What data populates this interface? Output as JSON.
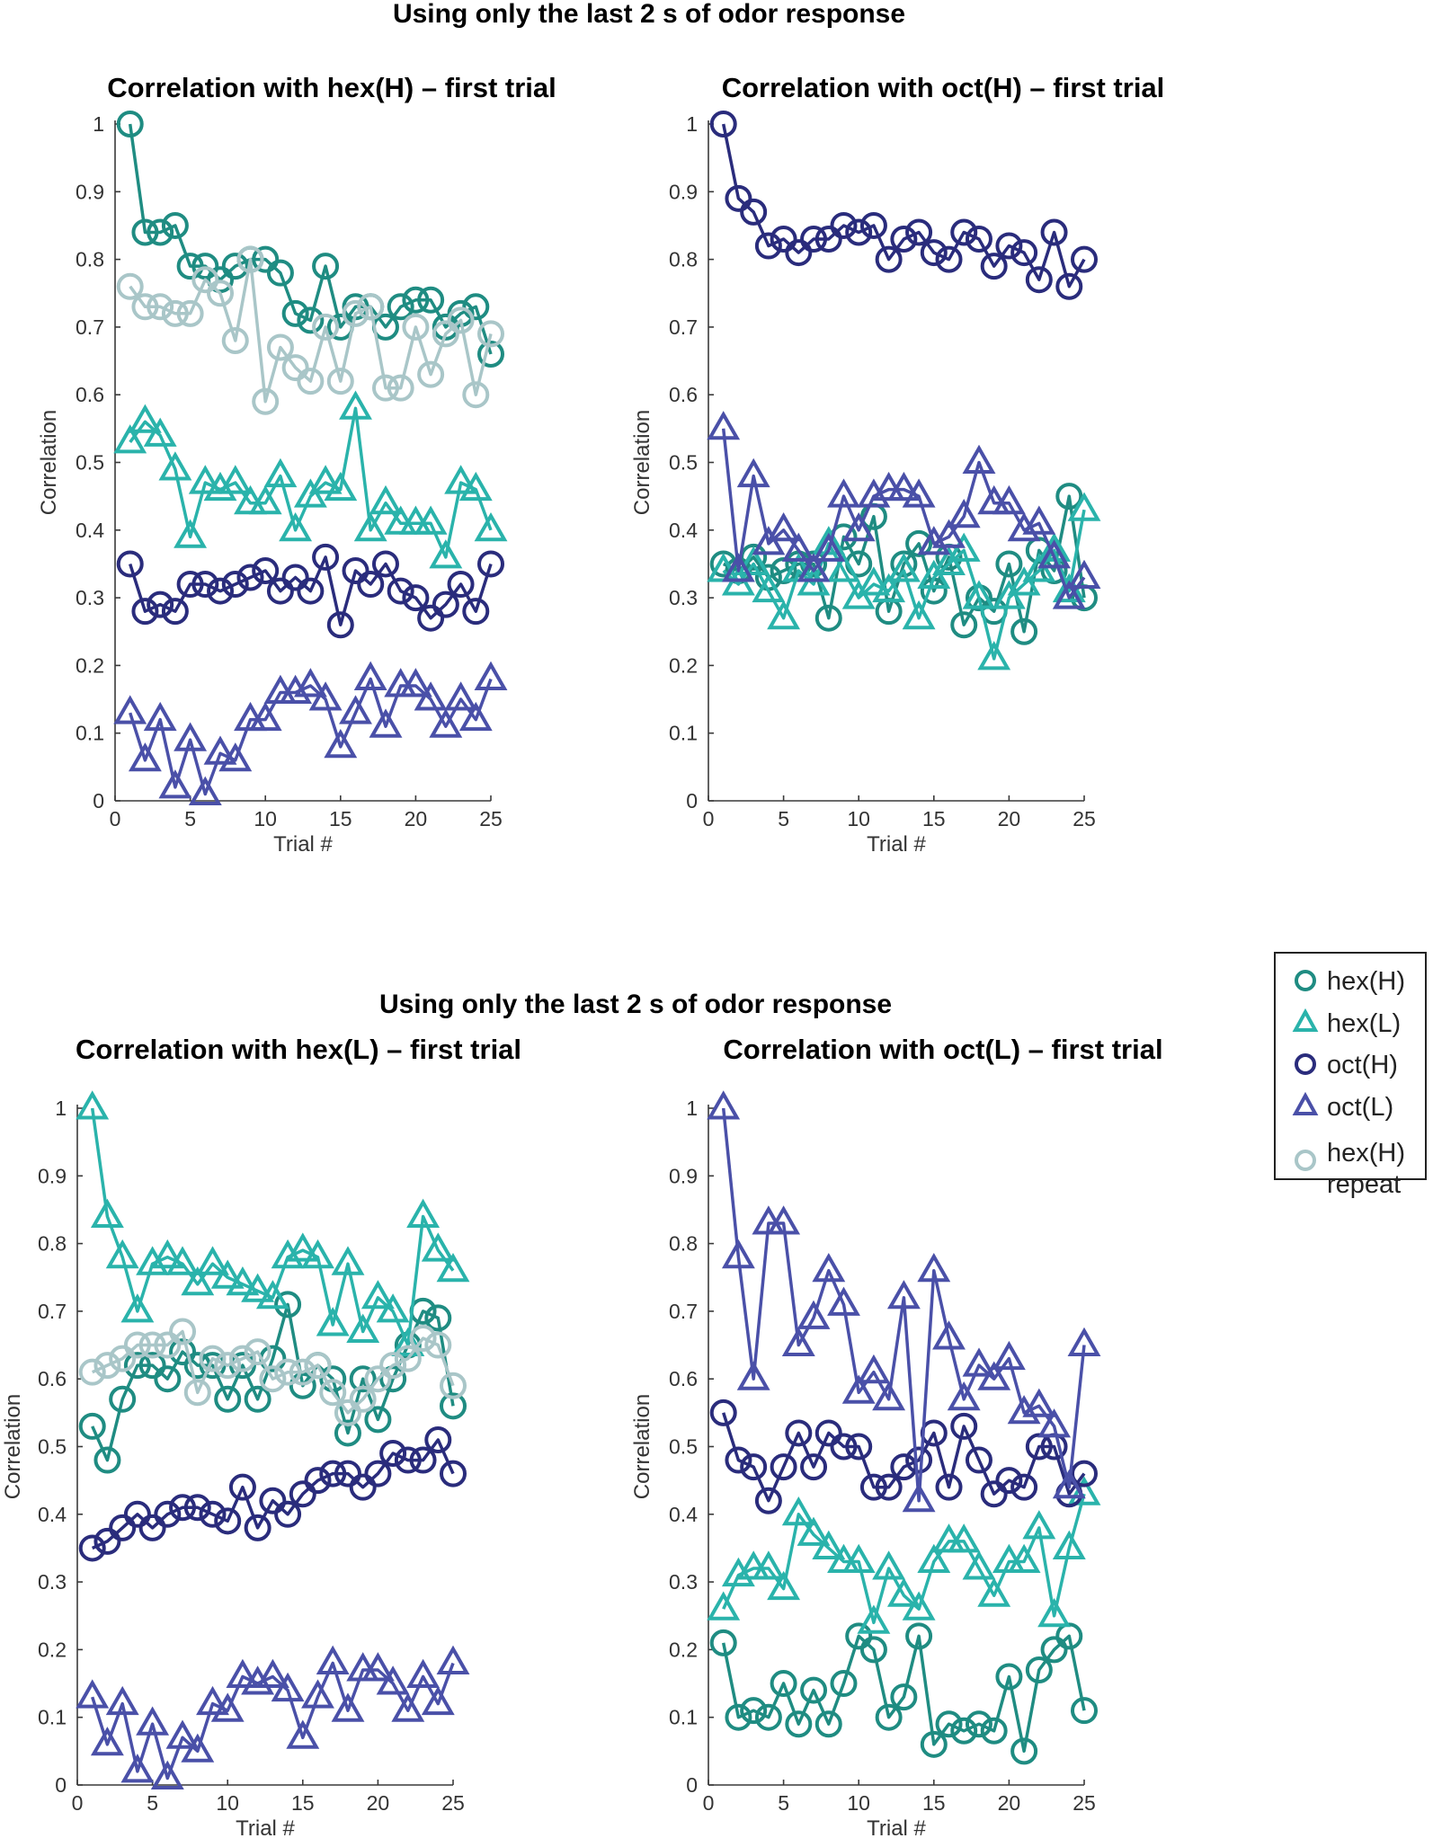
{
  "figure": {
    "group_titles": [
      "Using only the  last 2 s of odor response",
      "Using only the  last 2 s of odor response"
    ]
  },
  "colors": {
    "hexH": "#1f8c82",
    "hexL": "#2ab3ab",
    "octH": "#2a2c7c",
    "octL": "#4a50a8",
    "hexHrep": "#a9c6c8"
  },
  "legend": {
    "items": [
      {
        "label": "hex(H)",
        "marker": "circle",
        "color": "#1f8c82"
      },
      {
        "label": "hex(L)",
        "marker": "triangle",
        "color": "#2ab3ab"
      },
      {
        "label": "oct(H)",
        "marker": "circle",
        "color": "#2a2c7c"
      },
      {
        "label": "oct(L)",
        "marker": "triangle",
        "color": "#4a50a8"
      },
      {
        "label": "hex(H)",
        "label2": "repeat",
        "marker": "circle",
        "color": "#a9c6c8"
      }
    ]
  },
  "chart_data": [
    {
      "type": "line",
      "title": "Correlation with hex(H) – first trial",
      "xlabel": "Trial #",
      "ylabel": "Correlation",
      "xlim": [
        0,
        25
      ],
      "ylim": [
        0,
        1
      ],
      "xticks": [
        "0",
        "5",
        "10",
        "15",
        "20",
        "25"
      ],
      "yticks": [
        "0",
        "0.1",
        "0.2",
        "0.3",
        "0.4",
        "0.5",
        "0.6",
        "0.7",
        "0.8",
        "0.9",
        "1"
      ],
      "x": [
        1,
        2,
        3,
        4,
        5,
        6,
        7,
        8,
        9,
        10,
        11,
        12,
        13,
        14,
        15,
        16,
        17,
        18,
        19,
        20,
        21,
        22,
        23,
        24,
        25
      ],
      "series": [
        {
          "name": "hex(H)",
          "marker": "circle",
          "color": "#1f8c82",
          "values": [
            1.0,
            0.84,
            0.84,
            0.85,
            0.79,
            0.79,
            0.77,
            0.79,
            0.8,
            0.8,
            0.78,
            0.72,
            0.71,
            0.79,
            0.7,
            0.73,
            0.73,
            0.7,
            0.73,
            0.74,
            0.74,
            0.7,
            0.72,
            0.73,
            0.66
          ]
        },
        {
          "name": "hex(L)",
          "marker": "triangle",
          "color": "#2ab3ab",
          "values": [
            0.53,
            0.56,
            0.54,
            0.49,
            0.39,
            0.47,
            0.46,
            0.47,
            0.44,
            0.44,
            0.48,
            0.4,
            0.45,
            0.47,
            0.46,
            0.58,
            0.4,
            0.44,
            0.41,
            0.41,
            0.41,
            0.36,
            0.47,
            0.46,
            0.4
          ]
        },
        {
          "name": "oct(H)",
          "marker": "circle",
          "color": "#2a2c7c",
          "values": [
            0.35,
            0.28,
            0.29,
            0.28,
            0.32,
            0.32,
            0.31,
            0.32,
            0.33,
            0.34,
            0.31,
            0.33,
            0.31,
            0.36,
            0.26,
            0.34,
            0.32,
            0.35,
            0.31,
            0.3,
            0.27,
            0.29,
            0.32,
            0.28,
            0.35
          ]
        },
        {
          "name": "oct(L)",
          "marker": "triangle",
          "color": "#4a50a8",
          "values": [
            0.13,
            0.06,
            0.12,
            0.02,
            0.09,
            0.01,
            0.07,
            0.06,
            0.12,
            0.12,
            0.16,
            0.16,
            0.17,
            0.15,
            0.08,
            0.13,
            0.18,
            0.11,
            0.17,
            0.17,
            0.15,
            0.11,
            0.15,
            0.12,
            0.18
          ]
        },
        {
          "name": "hex(H) repeat",
          "marker": "circle",
          "color": "#a9c6c8",
          "values": [
            0.76,
            0.73,
            0.73,
            0.72,
            0.72,
            0.77,
            0.75,
            0.68,
            0.8,
            0.59,
            0.67,
            0.64,
            0.62,
            0.7,
            0.62,
            0.72,
            0.73,
            0.61,
            0.61,
            0.7,
            0.63,
            0.69,
            0.71,
            0.6,
            0.69
          ]
        }
      ]
    },
    {
      "type": "line",
      "title": "Correlation with oct(H) – first trial",
      "xlabel": "Trial #",
      "ylabel": "Correlation",
      "xlim": [
        0,
        25
      ],
      "ylim": [
        0,
        1
      ],
      "xticks": [
        "0",
        "5",
        "10",
        "15",
        "20",
        "25"
      ],
      "yticks": [
        "0",
        "0.1",
        "0.2",
        "0.3",
        "0.4",
        "0.5",
        "0.6",
        "0.7",
        "0.8",
        "0.9",
        "1"
      ],
      "x": [
        1,
        2,
        3,
        4,
        5,
        6,
        7,
        8,
        9,
        10,
        11,
        12,
        13,
        14,
        15,
        16,
        17,
        18,
        19,
        20,
        21,
        22,
        23,
        24,
        25
      ],
      "series": [
        {
          "name": "hex(H)",
          "marker": "circle",
          "color": "#1f8c82",
          "values": [
            0.35,
            0.34,
            0.36,
            0.33,
            0.34,
            0.35,
            0.35,
            0.27,
            0.39,
            0.35,
            0.42,
            0.28,
            0.35,
            0.38,
            0.31,
            0.36,
            0.26,
            0.3,
            0.28,
            0.35,
            0.25,
            0.37,
            0.34,
            0.45,
            0.3
          ]
        },
        {
          "name": "hex(L)",
          "marker": "triangle",
          "color": "#2ab3ab",
          "values": [
            0.34,
            0.32,
            0.35,
            0.31,
            0.27,
            0.34,
            0.32,
            0.38,
            0.34,
            0.3,
            0.32,
            0.31,
            0.34,
            0.27,
            0.33,
            0.35,
            0.37,
            0.3,
            0.21,
            0.3,
            0.32,
            0.34,
            0.37,
            0.31,
            0.43
          ]
        },
        {
          "name": "oct(H)",
          "marker": "circle",
          "color": "#2a2c7c",
          "values": [
            1.0,
            0.89,
            0.87,
            0.82,
            0.83,
            0.81,
            0.83,
            0.83,
            0.85,
            0.84,
            0.85,
            0.8,
            0.83,
            0.84,
            0.81,
            0.8,
            0.84,
            0.83,
            0.79,
            0.82,
            0.81,
            0.77,
            0.84,
            0.76,
            0.8
          ]
        },
        {
          "name": "oct(L)",
          "marker": "triangle",
          "color": "#4a50a8",
          "values": [
            0.55,
            0.34,
            0.48,
            0.38,
            0.4,
            0.37,
            0.34,
            0.37,
            0.45,
            0.4,
            0.45,
            0.46,
            0.46,
            0.45,
            0.38,
            0.39,
            0.42,
            0.5,
            0.44,
            0.44,
            0.4,
            0.41,
            0.36,
            0.3,
            0.33
          ]
        }
      ]
    },
    {
      "type": "line",
      "title": "Correlation with hex(L) – first trial",
      "xlabel": "Trial #",
      "ylabel": "Correlation",
      "xlim": [
        0,
        25
      ],
      "ylim": [
        0,
        1
      ],
      "xticks": [
        "0",
        "5",
        "10",
        "15",
        "20",
        "25"
      ],
      "yticks": [
        "0",
        "0.1",
        "0.2",
        "0.3",
        "0.4",
        "0.5",
        "0.6",
        "0.7",
        "0.8",
        "0.9",
        "1"
      ],
      "x": [
        1,
        2,
        3,
        4,
        5,
        6,
        7,
        8,
        9,
        10,
        11,
        12,
        13,
        14,
        15,
        16,
        17,
        18,
        19,
        20,
        21,
        22,
        23,
        24,
        25
      ],
      "series": [
        {
          "name": "hex(H)",
          "marker": "circle",
          "color": "#1f8c82",
          "values": [
            0.53,
            0.48,
            0.57,
            0.62,
            0.62,
            0.6,
            0.64,
            0.62,
            0.62,
            0.57,
            0.62,
            0.57,
            0.63,
            0.71,
            0.59,
            0.62,
            0.6,
            0.52,
            0.6,
            0.54,
            0.6,
            0.65,
            0.7,
            0.69,
            0.56
          ]
        },
        {
          "name": "hex(L)",
          "marker": "triangle",
          "color": "#2ab3ab",
          "values": [
            1.0,
            0.84,
            0.78,
            0.7,
            0.77,
            0.78,
            0.77,
            0.74,
            0.77,
            0.75,
            0.74,
            0.73,
            0.72,
            0.78,
            0.79,
            0.78,
            0.68,
            0.77,
            0.67,
            0.72,
            0.7,
            0.65,
            0.84,
            0.79,
            0.76
          ]
        },
        {
          "name": "oct(H)",
          "marker": "circle",
          "color": "#2a2c7c",
          "values": [
            0.35,
            0.36,
            0.38,
            0.4,
            0.38,
            0.4,
            0.41,
            0.41,
            0.4,
            0.39,
            0.44,
            0.38,
            0.42,
            0.4,
            0.43,
            0.45,
            0.46,
            0.46,
            0.44,
            0.46,
            0.49,
            0.48,
            0.48,
            0.51,
            0.46
          ]
        },
        {
          "name": "oct(L)",
          "marker": "triangle",
          "color": "#4a50a8",
          "values": [
            0.13,
            0.06,
            0.12,
            0.02,
            0.09,
            0.01,
            0.07,
            0.05,
            0.12,
            0.11,
            0.16,
            0.15,
            0.16,
            0.14,
            0.07,
            0.13,
            0.18,
            0.11,
            0.17,
            0.17,
            0.15,
            0.11,
            0.16,
            0.12,
            0.18
          ]
        },
        {
          "name": "hex(H) repeat",
          "marker": "circle",
          "color": "#a9c6c8",
          "values": [
            0.61,
            0.62,
            0.63,
            0.65,
            0.65,
            0.65,
            0.67,
            0.58,
            0.63,
            0.62,
            0.63,
            0.64,
            0.6,
            0.61,
            0.61,
            0.62,
            0.58,
            0.55,
            0.57,
            0.6,
            0.62,
            0.63,
            0.66,
            0.65,
            0.59
          ]
        }
      ]
    },
    {
      "type": "line",
      "title": "Correlation with oct(L) – first trial",
      "xlabel": "Trial #",
      "ylabel": "Correlation",
      "xlim": [
        0,
        25
      ],
      "ylim": [
        0,
        1
      ],
      "xticks": [
        "0",
        "5",
        "10",
        "15",
        "20",
        "25"
      ],
      "yticks": [
        "0",
        "0.1",
        "0.2",
        "0.3",
        "0.4",
        "0.5",
        "0.6",
        "0.7",
        "0.8",
        "0.9",
        "1"
      ],
      "x": [
        1,
        2,
        3,
        4,
        5,
        6,
        7,
        8,
        9,
        10,
        11,
        12,
        13,
        14,
        15,
        16,
        17,
        18,
        19,
        20,
        21,
        22,
        23,
        24,
        25
      ],
      "series": [
        {
          "name": "hex(H)",
          "marker": "circle",
          "color": "#1f8c82",
          "values": [
            0.21,
            0.1,
            0.11,
            0.1,
            0.15,
            0.09,
            0.14,
            0.09,
            0.15,
            0.22,
            0.2,
            0.1,
            0.13,
            0.22,
            0.06,
            0.09,
            0.08,
            0.09,
            0.08,
            0.16,
            0.05,
            0.17,
            0.2,
            0.22,
            0.11
          ]
        },
        {
          "name": "hex(L)",
          "marker": "triangle",
          "color": "#2ab3ab",
          "values": [
            0.26,
            0.31,
            0.32,
            0.32,
            0.29,
            0.4,
            0.37,
            0.35,
            0.33,
            0.33,
            0.24,
            0.32,
            0.28,
            0.26,
            0.33,
            0.36,
            0.36,
            0.32,
            0.28,
            0.33,
            0.33,
            0.38,
            0.25,
            0.35,
            0.43
          ]
        },
        {
          "name": "oct(H)",
          "marker": "circle",
          "color": "#2a2c7c",
          "values": [
            0.55,
            0.48,
            0.47,
            0.42,
            0.47,
            0.52,
            0.47,
            0.52,
            0.5,
            0.5,
            0.44,
            0.44,
            0.47,
            0.48,
            0.52,
            0.44,
            0.53,
            0.48,
            0.43,
            0.45,
            0.44,
            0.5,
            0.5,
            0.43,
            0.46
          ]
        },
        {
          "name": "oct(L)",
          "marker": "triangle",
          "color": "#4a50a8",
          "values": [
            1.0,
            0.78,
            0.6,
            0.83,
            0.83,
            0.65,
            0.69,
            0.76,
            0.71,
            0.58,
            0.61,
            0.57,
            0.72,
            0.42,
            0.76,
            0.66,
            0.57,
            0.62,
            0.6,
            0.63,
            0.55,
            0.56,
            0.53,
            0.44,
            0.65
          ]
        }
      ]
    }
  ]
}
